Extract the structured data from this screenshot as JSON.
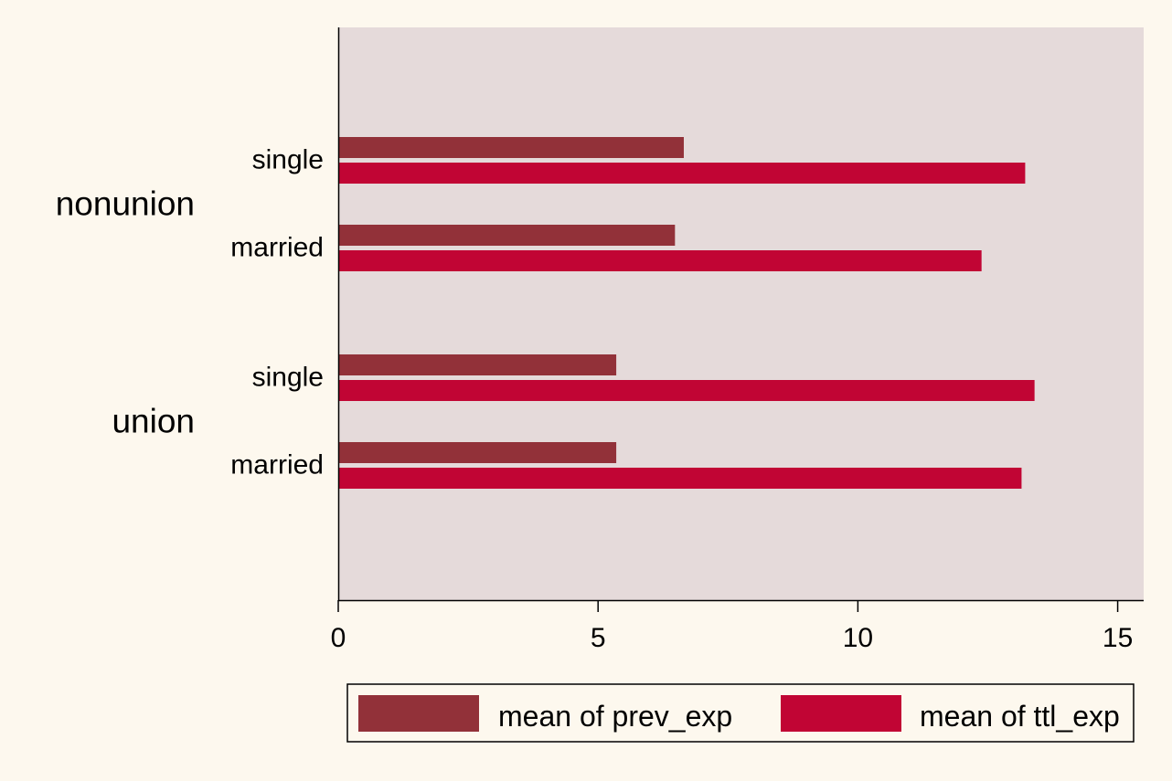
{
  "chart_data": {
    "type": "bar",
    "orientation": "horizontal",
    "groups": [
      {
        "name": "nonunion",
        "categories": [
          "single",
          "married"
        ]
      },
      {
        "name": "union",
        "categories": [
          "single",
          "married"
        ]
      }
    ],
    "series": [
      {
        "name": "mean of prev_exp",
        "color": "#923139",
        "values": [
          6.65,
          6.48,
          5.35,
          5.35
        ]
      },
      {
        "name": "mean of ttl_exp",
        "color": "#c10534",
        "values": [
          13.22,
          12.38,
          13.4,
          13.15
        ]
      }
    ],
    "xlim": [
      0,
      15.5
    ],
    "xticks": [
      0,
      5,
      10,
      15
    ],
    "grid": false,
    "legend_position": "bottom",
    "plot_background": "#e5dada",
    "page_background": "#fdf8ee"
  }
}
